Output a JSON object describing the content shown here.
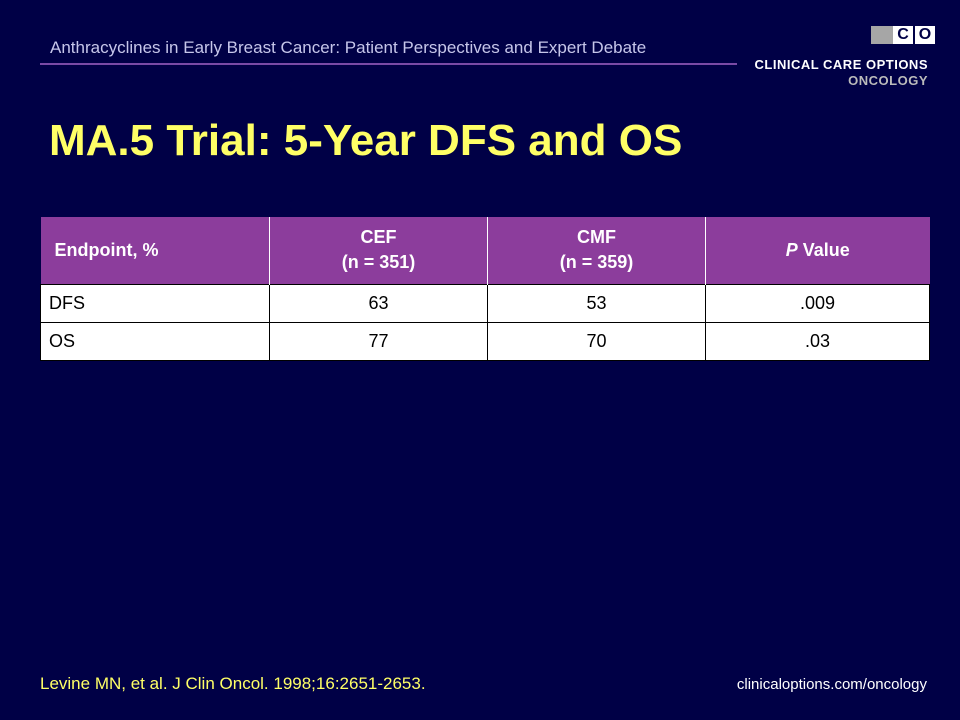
{
  "header": {
    "text": "Anthracyclines in Early Breast Cancer: Patient Perspectives and Expert Debate"
  },
  "logo": {
    "letters": [
      "C",
      "C",
      "O"
    ],
    "line1": "CLINICAL CARE OPTIONS",
    "line2": "ONCOLOGY"
  },
  "title": "MA.5 Trial: 5-Year DFS and OS",
  "table": {
    "headers": [
      {
        "line1": "Endpoint, %",
        "line2": ""
      },
      {
        "line1": "CEF",
        "line2": "(n = 351)"
      },
      {
        "line1": "CMF",
        "line2": "(n = 359)"
      },
      {
        "italic": "P",
        "rest": " Value"
      }
    ],
    "rows": [
      [
        "DFS",
        "63",
        "53",
        ".009"
      ],
      [
        "OS",
        "77",
        "70",
        ".03"
      ]
    ]
  },
  "footer": {
    "citation": "Levine MN, et al. J Clin Oncol. 1998;16:2651-2653.",
    "url": "clinicaloptions.com/oncology"
  },
  "colors": {
    "background": "#000046",
    "title": "#ffff66",
    "table_header": "#8c3d9c"
  }
}
